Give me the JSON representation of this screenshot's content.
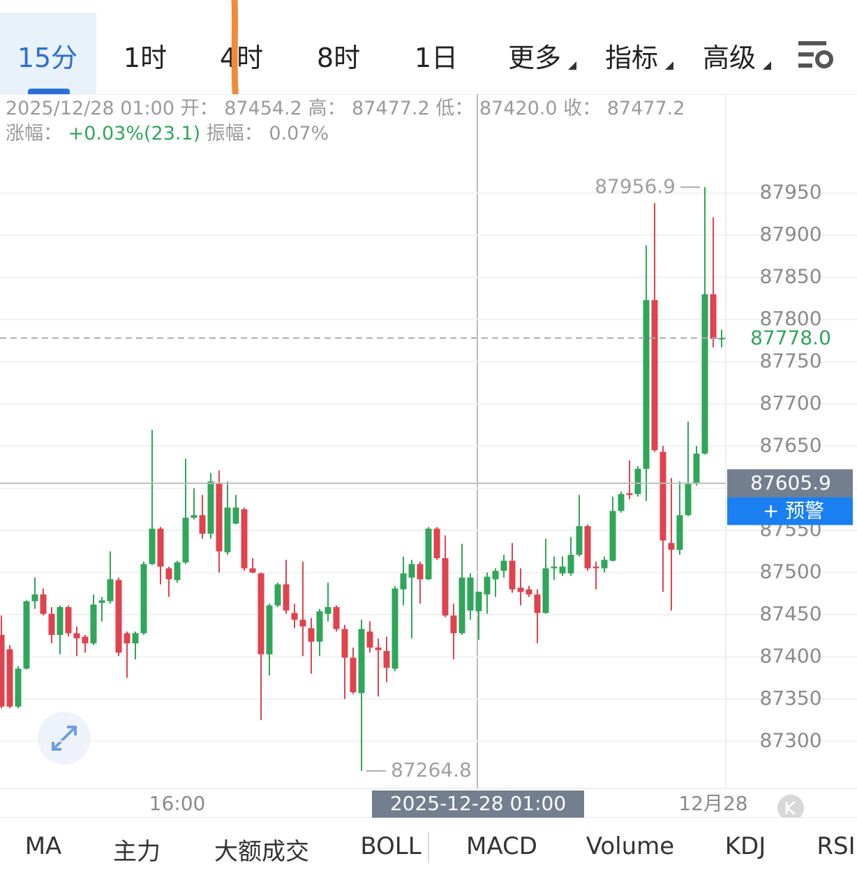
{
  "top_tabs": [
    "15分",
    "1时",
    "4时",
    "8时",
    "1日",
    "更多",
    "指标",
    "高级"
  ],
  "header": {
    "datetime": "2025/12/28 01:00",
    "open_label": "开：",
    "open": "87454.2",
    "high_label": "高：",
    "high": "87477.2",
    "low_label": "低：",
    "low": "87420.0",
    "close_label": "收：",
    "close": "87477.2",
    "change_label": "涨幅：",
    "change": "+0.03%(23.1)",
    "amplitude_label": "振幅：",
    "amplitude": "0.07%"
  },
  "chart_data": {
    "type": "candlestick",
    "up_color": "#2fa65a",
    "down_color": "#e0424e",
    "categories": [
      null,
      null,
      null,
      null,
      null,
      null,
      null,
      null,
      null,
      null,
      null,
      null,
      null,
      null,
      null,
      null,
      null,
      null,
      null,
      null,
      null,
      "16:00",
      null,
      null,
      null,
      null,
      null,
      null,
      null,
      null,
      null,
      null,
      null,
      null,
      null,
      null,
      null,
      null,
      null,
      null,
      null,
      null,
      null,
      null,
      null,
      null,
      null,
      null,
      null,
      null,
      null,
      null,
      null,
      null,
      null,
      null,
      null,
      null,
      null,
      null,
      null,
      null,
      null,
      null,
      null,
      null,
      null,
      null,
      null,
      null,
      null,
      null,
      null,
      null,
      null,
      null,
      null,
      null,
      null,
      null,
      null,
      null,
      null,
      null,
      null,
      "12月28",
      null
    ],
    "open": [
      87426,
      87409,
      87341,
      87386,
      87466,
      87474,
      87451,
      87426,
      87459,
      87428,
      87424,
      87416,
      87464,
      87466,
      87491,
      87428,
      87416,
      87428,
      87510,
      87552,
      87505,
      87491,
      87512,
      87565,
      87568,
      87546,
      87606,
      87524,
      87558,
      87575,
      87505,
      87499,
      87403,
      87461,
      87486,
      87452,
      87444,
      87434,
      87418,
      87451,
      87459,
      87433,
      87399,
      87357,
      87430,
      87411,
      87407,
      87386,
      87480,
      87494,
      87510,
      87492,
      87552,
      87517,
      87449,
      87428,
      87455,
      87454.2,
      87474,
      87492,
      87502,
      87514,
      87482,
      87480,
      87474,
      87452,
      87505,
      87499,
      87499,
      87521,
      87555,
      87507,
      87505,
      87514,
      87573,
      87594,
      87593,
      87623,
      87823,
      87643,
      87535,
      87527,
      87568,
      87605,
      87641,
      87830,
      87777
    ],
    "high": [
      87449,
      87414,
      87389,
      87467,
      87494,
      87481,
      87459,
      87461,
      87461,
      87436,
      87426,
      87474,
      87471,
      87525,
      87494,
      87430,
      87430,
      87513,
      87669,
      87554,
      87507,
      87514,
      87635,
      87600,
      87592,
      87618,
      87621,
      87608,
      87592,
      87577,
      87517,
      87500,
      87463,
      87488,
      87515,
      87463,
      87513,
      87446,
      87457,
      87488,
      87461,
      87438,
      87411,
      87444,
      87442,
      87422,
      87424,
      87484,
      87519,
      87515,
      87513,
      87554,
      87554,
      87544,
      87463,
      87534,
      87499,
      87477.2,
      87500,
      87505,
      87521,
      87535,
      87505,
      87484,
      87480,
      87540,
      87519,
      87519,
      87542,
      87592,
      87557,
      87513,
      87519,
      87590,
      87596,
      87633,
      87626,
      87888,
      87938,
      87650,
      87612,
      87608,
      87679,
      87650,
      87956.9,
      87921,
      87788
    ],
    "low": [
      87339,
      87339,
      87339,
      87385,
      87457,
      87449,
      87416,
      87403,
      87424,
      87401,
      87405,
      87414,
      87442,
      87463,
      87401,
      87375,
      87397,
      87426,
      87509,
      87486,
      87471,
      87488,
      87510,
      87563,
      87540,
      87540,
      87500,
      87521,
      87557,
      87502,
      87499,
      87325,
      87378,
      87459,
      87451,
      87434,
      87401,
      87380,
      87401,
      87442,
      87430,
      87350,
      87356,
      87264.8,
      87405,
      87353,
      87370,
      87383,
      87461,
      87422,
      87463,
      87491,
      87515,
      87447,
      87397,
      87426,
      87444,
      87420.0,
      87451,
      87471,
      87494,
      87476,
      87461,
      87471,
      87416,
      87451,
      87491,
      87496,
      87496,
      87519,
      87502,
      87480,
      87500,
      87513,
      87571,
      87587,
      87590,
      87585,
      87643,
      87477,
      87455,
      87521,
      87567,
      87603,
      87640,
      87767,
      87767
    ],
    "close": [
      87341,
      87341,
      87386,
      87466,
      87474,
      87451,
      87426,
      87459,
      87428,
      87422,
      87416,
      87462,
      87467,
      87492,
      87405,
      87416,
      87428,
      87510,
      87552,
      87507,
      87492,
      87512,
      87565,
      87568,
      87546,
      87608,
      87525,
      87577,
      87577,
      87505,
      87500,
      87403,
      87461,
      87486,
      87455,
      87444,
      87436,
      87418,
      87454,
      87459,
      87433,
      87399,
      87358,
      87433,
      87411,
      87408,
      87387,
      87481,
      87499,
      87510,
      87492,
      87552,
      87517,
      87449,
      87428,
      87494,
      87494,
      87477.2,
      87495,
      87502,
      87514,
      87480,
      87477,
      87474,
      87452,
      87505,
      87507,
      87507,
      87521,
      87555,
      87505,
      87505,
      87515,
      87573,
      87593,
      87592,
      87623,
      87823,
      87645,
      87538,
      87527,
      87568,
      87605,
      87641,
      87830,
      87777,
      87778.0
    ],
    "ylim": [
      87244,
      88001
    ],
    "yticks": [
      87300,
      87350,
      87400,
      87450,
      87500,
      87550,
      87600,
      87650,
      87700,
      87750,
      87800,
      87850,
      87900,
      87950
    ],
    "grid": true,
    "last_price": {
      "value": 87778.0,
      "label": "87778.0"
    },
    "crosshair": {
      "price": {
        "value": 87605.9,
        "label": "87605.9"
      },
      "time_label": "2025-12-28 01:00",
      "alert": "+ 预警"
    }
  },
  "bottom_tabs": [
    "MA",
    "主力",
    "大额成交",
    "BOLL",
    "MACD",
    "Volume",
    "KDJ",
    "RSI"
  ]
}
